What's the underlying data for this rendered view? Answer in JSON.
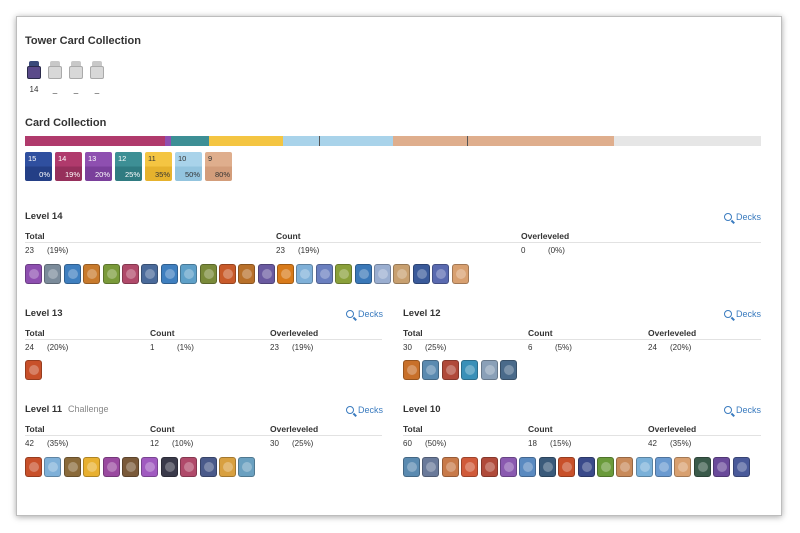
{
  "tower": {
    "title": "Tower Card Collection",
    "items": [
      {
        "label": "14",
        "owned": true
      },
      {
        "label": "_",
        "owned": false
      },
      {
        "label": "_",
        "owned": false
      },
      {
        "label": "_",
        "owned": false
      }
    ]
  },
  "collection": {
    "title": "Card Collection",
    "levels": [
      {
        "level": "15",
        "pct": "0%",
        "color": "#2f4f9f",
        "bottom": "#243f86",
        "text": "#ffffff"
      },
      {
        "level": "14",
        "pct": "19%",
        "color": "#b03a6c",
        "bottom": "#962f5b",
        "text": "#ffffff"
      },
      {
        "level": "13",
        "pct": "20%",
        "color": "#8e4fb0",
        "bottom": "#7a3f9b",
        "text": "#ffffff"
      },
      {
        "level": "12",
        "pct": "25%",
        "color": "#3d8f95",
        "bottom": "#2f7b81",
        "text": "#ffffff"
      },
      {
        "level": "11",
        "pct": "35%",
        "color": "#f4c542",
        "bottom": "#e6b22d",
        "text": "#333333"
      },
      {
        "level": "10",
        "pct": "50%",
        "color": "#a9d3ea",
        "bottom": "#93c4de",
        "text": "#333333"
      },
      {
        "level": "9",
        "pct": "80%",
        "color": "#dfae8d",
        "bottom": "#d39d7b",
        "text": "#333333"
      }
    ],
    "bar_segments": [
      {
        "color": "#b03a6c",
        "fraction": 0.19
      },
      {
        "color": "#8e4fb0",
        "fraction": 0.008
      },
      {
        "color": "#3d8f95",
        "fraction": 0.052
      },
      {
        "color": "#f4c542",
        "fraction": 0.1
      },
      {
        "color": "#a9d3ea",
        "fraction": 0.15
      },
      {
        "color": "#dfae8d",
        "fraction": 0.3
      },
      {
        "color": "#e6e6e6",
        "fraction": 0.2
      }
    ]
  },
  "sections": {
    "l14": {
      "title": "Level 14",
      "sub": "",
      "link": "Decks",
      "h_total": "Total",
      "h_count": "Count",
      "h_over": "Overleveled",
      "total": "23",
      "total_pct": "(19%)",
      "count": "23",
      "count_pct": "(19%)",
      "over": "0",
      "over_pct": "(0%)",
      "cards": [
        "#8e4fb0",
        "#7b8b9a",
        "#3f7fbf",
        "#c87a2c",
        "#7a9a3a",
        "#b04a6a",
        "#4a6a9a",
        "#3f7fbf",
        "#5fa0c8",
        "#7a8a3a",
        "#c85a2a",
        "#b8702a",
        "#6a5aa0",
        "#d87a1a",
        "#7fb0d8",
        "#6a7fbf",
        "#8aa03a",
        "#3a78b8",
        "#9aaed0",
        "#c8a070",
        "#3a5a9a",
        "#5a6ab0",
        "#d8a070"
      ]
    },
    "l13": {
      "title": "Level 13",
      "sub": "",
      "link": "Decks",
      "h_total": "Total",
      "h_count": "Count",
      "h_over": "Overleveled",
      "total": "24",
      "total_pct": "(20%)",
      "count": "1",
      "count_pct": "(1%)",
      "over": "23",
      "over_pct": "(19%)",
      "cards": [
        "#c8502a"
      ]
    },
    "l12": {
      "title": "Level 12",
      "sub": "",
      "link": "Decks",
      "h_total": "Total",
      "h_count": "Count",
      "h_over": "Overleveled",
      "total": "30",
      "total_pct": "(25%)",
      "count": "6",
      "count_pct": "(5%)",
      "over": "24",
      "over_pct": "(20%)",
      "cards": [
        "#c8702a",
        "#5a8ab0",
        "#b04a3a",
        "#3a90b8",
        "#8aa0b8",
        "#4a6a8a"
      ]
    },
    "l11": {
      "title": "Level 11",
      "sub": "Challenge",
      "link": "Decks",
      "h_total": "Total",
      "h_count": "Count",
      "h_over": "Overleveled",
      "total": "42",
      "total_pct": "(35%)",
      "count": "12",
      "count_pct": "(10%)",
      "over": "30",
      "over_pct": "(25%)",
      "cards": [
        "#c8502a",
        "#7fb0d8",
        "#8a6a3a",
        "#e8b030",
        "#9a4aa0",
        "#7a5a3a",
        "#a05ac0",
        "#3a3a4a",
        "#b04a6a",
        "#4a5a8a",
        "#d8a040",
        "#6aa0c0"
      ]
    },
    "l10": {
      "title": "Level 10",
      "sub": "",
      "link": "Decks",
      "h_total": "Total",
      "h_count": "Count",
      "h_over": "Overleveled",
      "total": "60",
      "total_pct": "(50%)",
      "count": "18",
      "count_pct": "(15%)",
      "over": "42",
      "over_pct": "(35%)",
      "cards": [
        "#5a8ab0",
        "#6a7a9a",
        "#c87a4a",
        "#d05a3a",
        "#b04a3a",
        "#8a5ab0",
        "#5a8ac0",
        "#3a5a7a",
        "#c8502a",
        "#3a4a8a",
        "#6a9a3a",
        "#c88a5a",
        "#7ab0d8",
        "#6a9ad0",
        "#d8a070",
        "#3a5a4a",
        "#6a4a9a",
        "#4a5a9a"
      ]
    }
  }
}
